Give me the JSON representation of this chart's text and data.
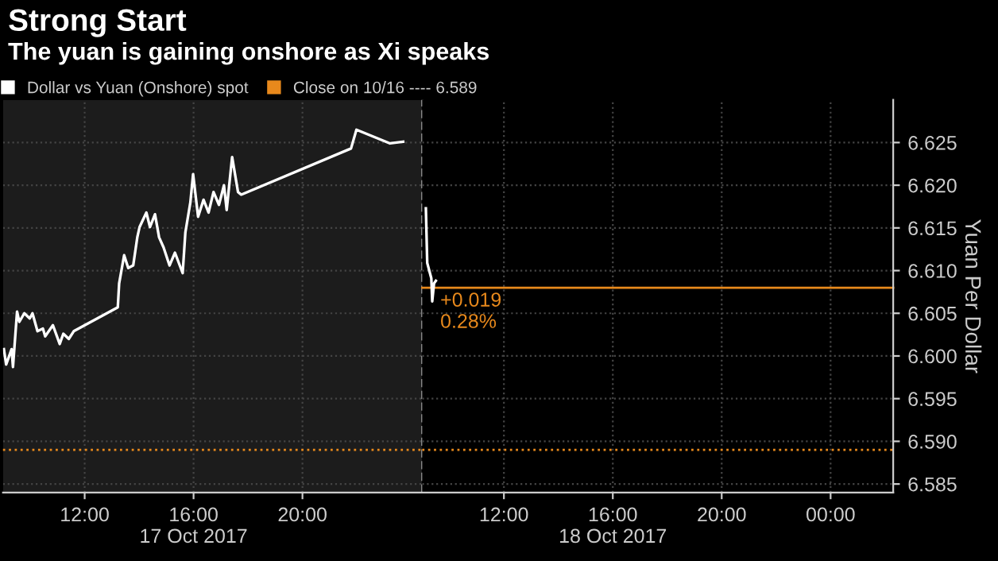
{
  "chart_data": [
    {
      "type": "line",
      "title": "Strong Start",
      "subtitle": "The yuan is gaining onshore as Xi speaks",
      "x": [
        "2017-10-17T09:02",
        "2017-10-17T09:07",
        "2017-10-17T09:19",
        "2017-10-17T09:22",
        "2017-10-17T09:31",
        "2017-10-17T09:36",
        "2017-10-17T09:47",
        "2017-10-17T09:59",
        "2017-10-17T10:05",
        "2017-10-17T10:16",
        "2017-10-17T10:28",
        "2017-10-17T10:33",
        "2017-10-17T10:50",
        "2017-10-17T11:05",
        "2017-10-17T11:13",
        "2017-10-17T11:25",
        "2017-10-17T11:36",
        "2017-10-17T13:13",
        "2017-10-17T13:16",
        "2017-10-17T13:27",
        "2017-10-17T13:36",
        "2017-10-17T13:47",
        "2017-10-17T13:56",
        "2017-10-17T14:01",
        "2017-10-17T14:16",
        "2017-10-17T14:24",
        "2017-10-17T14:35",
        "2017-10-17T14:44",
        "2017-10-17T14:54",
        "2017-10-17T15:07",
        "2017-10-17T15:19",
        "2017-10-17T15:36",
        "2017-10-17T15:42",
        "2017-10-17T15:53",
        "2017-10-17T15:59",
        "2017-10-17T16:10",
        "2017-10-17T16:22",
        "2017-10-17T16:33",
        "2017-10-17T16:44",
        "2017-10-17T16:56",
        "2017-10-17T17:07",
        "2017-10-17T17:13",
        "2017-10-17T17:25",
        "2017-10-17T17:38",
        "2017-10-17T17:45",
        "2017-10-17T21:47",
        "2017-10-17T21:59",
        "2017-10-17T23:13",
        "2017-10-17T23:42"
      ],
      "series": [
        {
          "name": "Dollar vs Yuan (Onshore) spot",
          "color": "#ffffff",
          "values": [
            6.6008,
            6.599,
            6.6008,
            6.5987,
            6.6052,
            6.604,
            6.605,
            6.6044,
            6.605,
            6.6029,
            6.6032,
            6.6023,
            6.6036,
            6.6014,
            6.6026,
            6.602,
            6.6029,
            6.6057,
            6.6085,
            6.6118,
            6.6103,
            6.6106,
            6.6139,
            6.6151,
            6.6168,
            6.6151,
            6.6166,
            6.6139,
            6.6127,
            6.6106,
            6.6121,
            6.6097,
            6.6145,
            6.618,
            6.6213,
            6.6163,
            6.6183,
            6.6168,
            6.6192,
            6.6177,
            6.62,
            6.6171,
            6.6233,
            6.6192,
            6.6189,
            6.6243,
            6.6265,
            6.6249,
            6.6251
          ]
        }
      ],
      "xlim": [
        "2017-10-17T09:00",
        "2017-10-18T00:24"
      ],
      "xticks": [
        {
          "value": "2017-10-17T12:00",
          "label": "12:00"
        },
        {
          "value": "2017-10-17T16:00",
          "label": "16:00\n17 Oct 2017"
        },
        {
          "value": "2017-10-17T20:00",
          "label": "20:00"
        }
      ],
      "ylim": [
        6.584,
        6.63
      ],
      "yticks": [
        6.585,
        6.59,
        6.595,
        6.6,
        6.605,
        6.61,
        6.615,
        6.62,
        6.625
      ],
      "tick_labels": "x",
      "ref_lines": [
        {
          "axis": "y",
          "value": 6.589,
          "label": "Close on 10/16 ---- 6.589",
          "color": "#e8891c",
          "line_style": "dotted"
        },
        {
          "axis": "x",
          "value": "2017-10-18T00:24",
          "color": "#888888",
          "line_style": "dashed"
        }
      ],
      "bands": [
        {
          "axis": "x",
          "from": "2017-10-17T09:00",
          "to": "2017-10-18T00:24",
          "color": "#1c1c1c"
        }
      ],
      "grid": true,
      "legend": "top",
      "marker": "none",
      "line_style": "solid"
    },
    {
      "type": "line",
      "ylabel": "Yuan Per Dollar",
      "x": [
        "2017-10-18T09:08",
        "2017-10-18T09:11",
        "2017-10-18T09:20",
        "2017-10-18T09:22",
        "2017-10-18T09:26",
        "2017-10-18T09:30"
      ],
      "series": [
        {
          "color": "#ffffff",
          "values": [
            6.6173,
            6.6109,
            6.6091,
            6.6064,
            6.6085,
            6.6088
          ]
        }
      ],
      "xlim": [
        "2017-10-18T09:00",
        "2017-10-19T02:18"
      ],
      "xticks": [
        {
          "value": "2017-10-18T12:00",
          "label": "12:00"
        },
        {
          "value": "2017-10-18T16:00",
          "label": "16:00\n18 Oct 2017"
        },
        {
          "value": "2017-10-18T20:00",
          "label": "20:00"
        },
        {
          "value": "2017-10-19T00:00",
          "label": "00:00"
        }
      ],
      "ylim": [
        6.584,
        6.63
      ],
      "yticks": [
        6.585,
        {
          "value": 6.59,
          "label": "6.590"
        },
        6.595,
        {
          "value": 6.6,
          "label": "6.600"
        },
        6.605,
        {
          "value": 6.61,
          "label": "6.610"
        },
        6.615,
        {
          "value": 6.62,
          "label": "6.620"
        },
        6.625
      ],
      "ref_lines": [
        {
          "axis": "y",
          "value": 6.589,
          "color": "#e8891c",
          "line_style": "dotted"
        },
        {
          "axis": "y",
          "value": 6.608,
          "color": "#e8891c",
          "line_style": "solid"
        }
      ],
      "annotations": [
        {
          "text": "+0.019\n0.28%",
          "x": "2017-10-18T09:30",
          "y": 6.608
        }
      ],
      "grid": true,
      "marker": "none",
      "line_style": "solid"
    }
  ]
}
